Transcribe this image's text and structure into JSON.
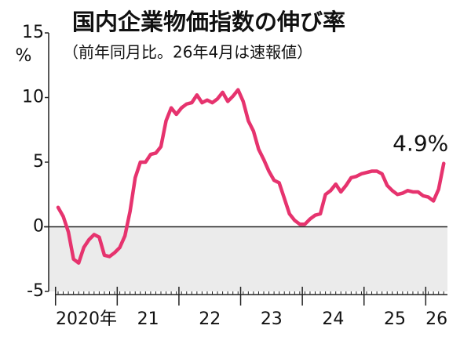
{
  "chart_data": {
    "type": "line",
    "title": "国内企業物価指数の伸び率",
    "subtitle": "（前年同月比。26年4月は速報値）",
    "y_unit": "%",
    "categories": [
      "2020年",
      null,
      null,
      null,
      null,
      null,
      null,
      null,
      null,
      null,
      null,
      null,
      "21",
      null,
      null,
      null,
      null,
      null,
      null,
      null,
      null,
      null,
      null,
      null,
      "22",
      null,
      null,
      null,
      null,
      null,
      null,
      null,
      null,
      null,
      null,
      null,
      "23",
      null,
      null,
      null,
      null,
      null,
      null,
      null,
      null,
      null,
      null,
      null,
      "24",
      null,
      null,
      null,
      null,
      null,
      null,
      null,
      null,
      null,
      null,
      null,
      "25",
      null,
      null,
      null,
      null,
      null,
      null,
      null,
      null,
      null,
      null,
      null,
      "26",
      null,
      null,
      null
    ],
    "series": [
      {
        "color": "#e6336e",
        "values": [
          1.5,
          0.8,
          -0.4,
          -2.5,
          -2.8,
          -1.6,
          -1.0,
          -0.6,
          -0.8,
          -2.2,
          -2.3,
          -2.0,
          -1.6,
          -0.7,
          1.2,
          3.8,
          5.0,
          5.0,
          5.6,
          5.7,
          6.2,
          8.2,
          9.2,
          8.7,
          9.2,
          9.5,
          9.6,
          10.2,
          9.6,
          9.8,
          9.6,
          9.9,
          10.4,
          9.7,
          10.1,
          10.6,
          9.7,
          8.2,
          7.4,
          6.0,
          5.2,
          4.3,
          3.6,
          3.4,
          2.2,
          1.0,
          0.5,
          0.2,
          0.2,
          0.6,
          0.9,
          1.0,
          2.5,
          2.8,
          3.3,
          2.7,
          3.2,
          3.8,
          3.9,
          4.1,
          4.2,
          4.3,
          4.3,
          4.1,
          3.2,
          2.8,
          2.5,
          2.6,
          2.8,
          2.7,
          2.7,
          2.4,
          2.3,
          2.0,
          2.9,
          4.9
        ],
        "value_labels": [
          null,
          null,
          null,
          null,
          null,
          null,
          null,
          null,
          null,
          null,
          null,
          null,
          null,
          null,
          null,
          null,
          null,
          null,
          null,
          null,
          null,
          null,
          null,
          null,
          null,
          null,
          null,
          null,
          null,
          null,
          null,
          null,
          null,
          null,
          null,
          null,
          null,
          null,
          null,
          null,
          null,
          null,
          null,
          null,
          null,
          null,
          null,
          null,
          null,
          null,
          null,
          null,
          null,
          null,
          null,
          null,
          null,
          null,
          null,
          null,
          null,
          null,
          null,
          null,
          null,
          null,
          null,
          null,
          null,
          null,
          null,
          null,
          null,
          null,
          null,
          "4.9%"
        ]
      }
    ],
    "ylim": [
      -5,
      15
    ],
    "yticks": [
      -5,
      0,
      5,
      10,
      15
    ],
    "negative_shading": "#ebebeb"
  }
}
